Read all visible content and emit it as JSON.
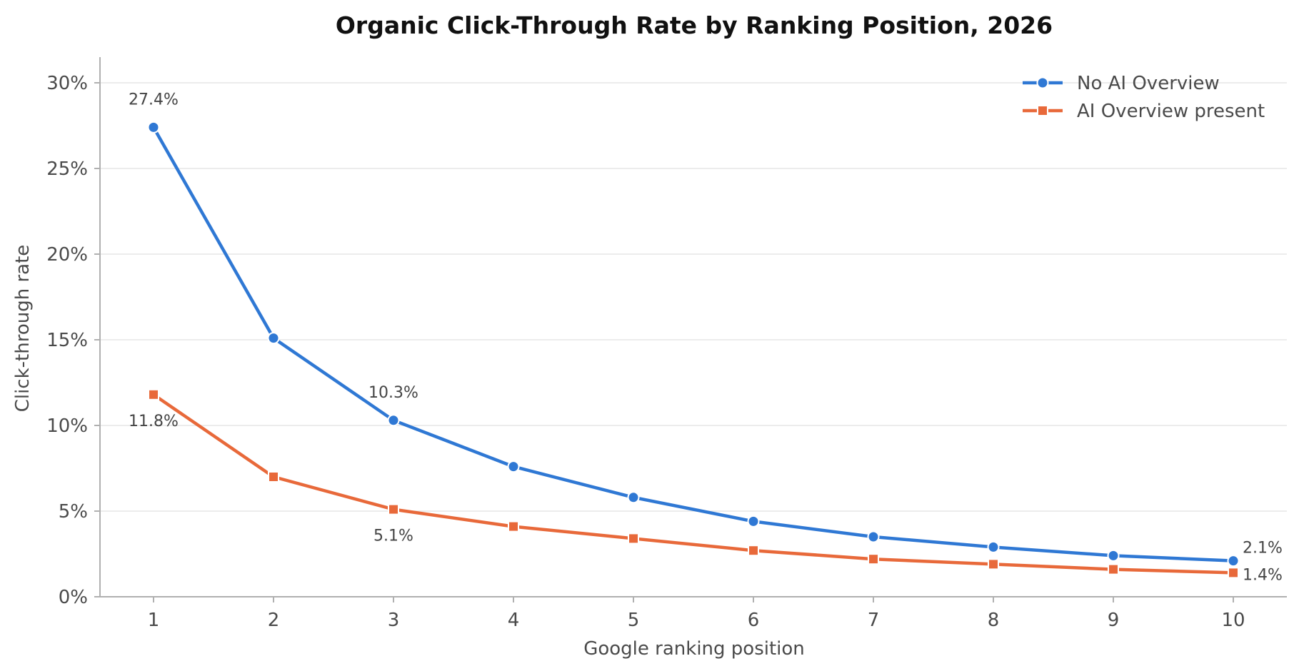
{
  "chart_data": {
    "type": "line",
    "title": "Organic Click-Through Rate by Ranking Position, 2026",
    "xlabel": "Google ranking position",
    "ylabel": "Click-through rate",
    "x": [
      1,
      2,
      3,
      4,
      5,
      6,
      7,
      8,
      9,
      10
    ],
    "x_tick_labels": [
      "1",
      "2",
      "3",
      "4",
      "5",
      "6",
      "7",
      "8",
      "9",
      "10"
    ],
    "ylim": [
      0,
      31.5
    ],
    "y_ticks": [
      0,
      5,
      10,
      15,
      20,
      25,
      30
    ],
    "y_tick_labels": [
      "0%",
      "5%",
      "10%",
      "15%",
      "20%",
      "25%",
      "30%"
    ],
    "grid": "horizontal",
    "legend_position": "top-right",
    "series": [
      {
        "name": "No AI Overview",
        "color": "#2f78d4",
        "marker": "circle",
        "values": [
          27.4,
          15.1,
          10.3,
          7.6,
          5.8,
          4.4,
          3.5,
          2.9,
          2.4,
          2.1
        ]
      },
      {
        "name": "AI Overview present",
        "color": "#e8693a",
        "marker": "square",
        "values": [
          11.8,
          7.0,
          5.1,
          4.1,
          3.4,
          2.7,
          2.2,
          1.9,
          1.6,
          1.4
        ]
      }
    ],
    "annotations": [
      {
        "series": 0,
        "x": 1,
        "text": "27.4%",
        "placement": "above"
      },
      {
        "series": 0,
        "x": 3,
        "text": "10.3%",
        "placement": "above"
      },
      {
        "series": 0,
        "x": 10,
        "text": "2.1%",
        "placement": "right"
      },
      {
        "series": 1,
        "x": 1,
        "text": "11.8%",
        "placement": "below"
      },
      {
        "series": 1,
        "x": 3,
        "text": "5.1%",
        "placement": "below"
      },
      {
        "series": 1,
        "x": 10,
        "text": "1.4%",
        "placement": "right"
      }
    ]
  }
}
